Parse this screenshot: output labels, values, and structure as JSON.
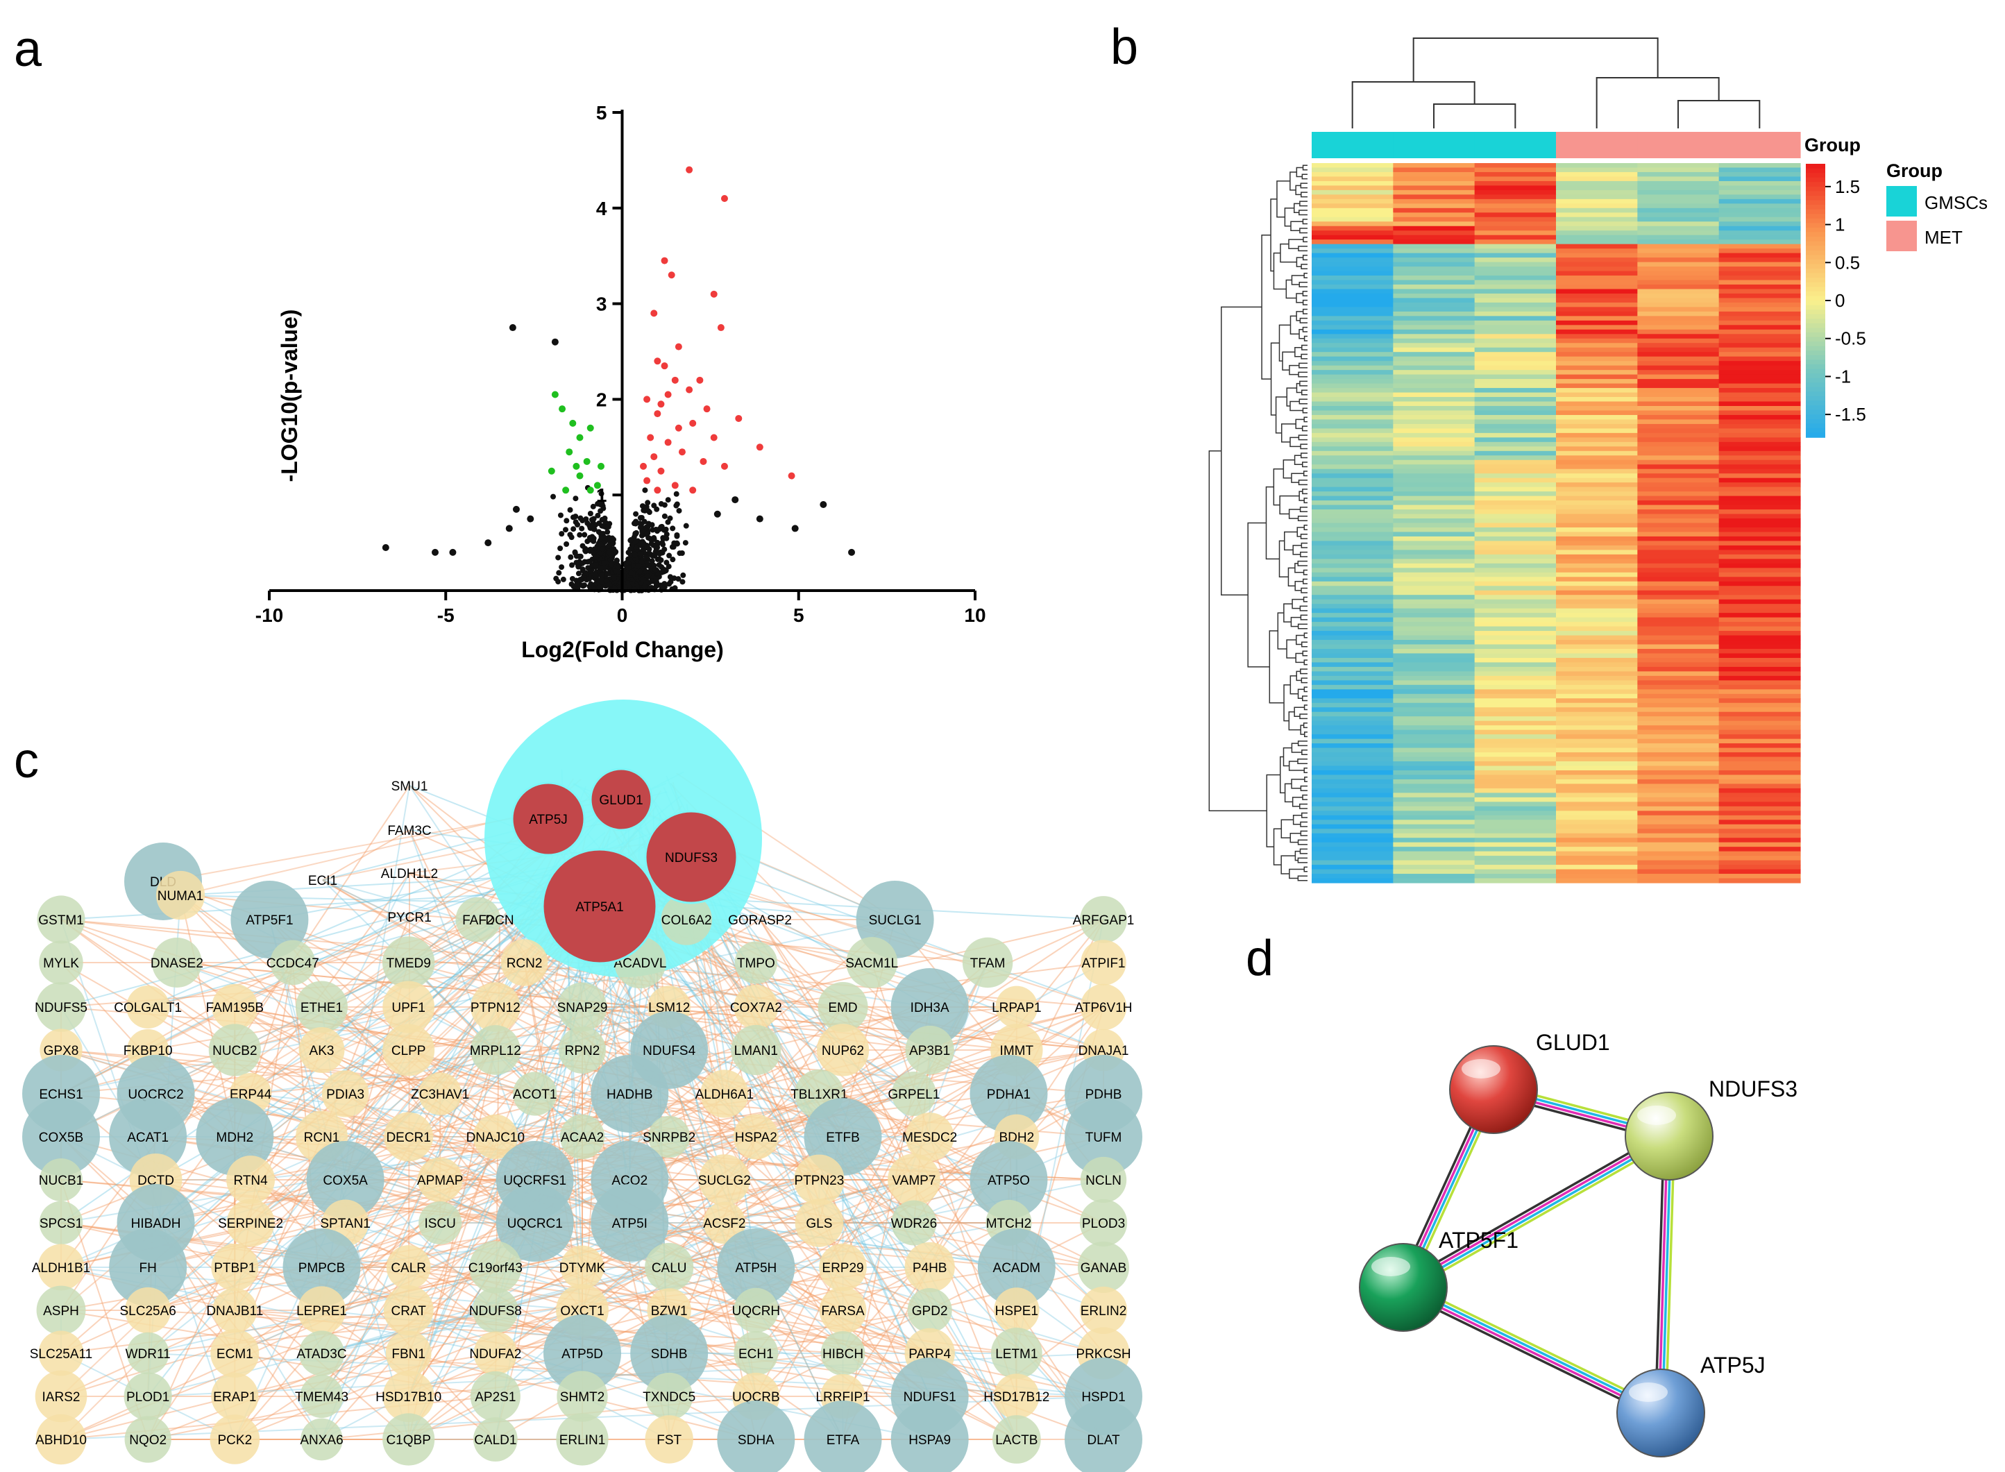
{
  "panels": {
    "a": {
      "letter": "a"
    },
    "b": {
      "letter": "b"
    },
    "c": {
      "letter": "c"
    },
    "d": {
      "letter": "d"
    }
  },
  "chart_data": [
    {
      "type": "scatter",
      "title": "",
      "xlabel": "Log2(Fold Change)",
      "ylabel": "-LOG10(p-value)",
      "xlim": [
        -10,
        10
      ],
      "ylim": [
        0,
        5
      ],
      "xticks": [
        -10,
        -5,
        0,
        5,
        10
      ],
      "yticks": [
        1,
        2,
        3,
        4,
        5
      ],
      "colors": {
        "up": "#ef3b3b",
        "down": "#1fbf1f",
        "ns": "#111111"
      },
      "series": [
        {
          "name": "up",
          "points": [
            [
              1.9,
              4.4
            ],
            [
              2.9,
              4.1
            ],
            [
              1.2,
              3.45
            ],
            [
              1.4,
              3.3
            ],
            [
              2.6,
              3.1
            ],
            [
              0.9,
              2.9
            ],
            [
              2.8,
              2.75
            ],
            [
              1.6,
              2.55
            ],
            [
              1.0,
              2.4
            ],
            [
              1.2,
              2.35
            ],
            [
              1.5,
              2.2
            ],
            [
              2.2,
              2.2
            ],
            [
              0.7,
              2.0
            ],
            [
              1.1,
              1.95
            ],
            [
              3.3,
              1.8
            ],
            [
              2.0,
              1.75
            ],
            [
              1.0,
              1.85
            ],
            [
              2.6,
              1.6
            ],
            [
              3.9,
              1.5
            ],
            [
              4.8,
              1.2
            ],
            [
              1.3,
              1.55
            ],
            [
              1.7,
              1.45
            ],
            [
              0.9,
              1.4
            ],
            [
              2.3,
              1.35
            ],
            [
              1.1,
              1.25
            ],
            [
              0.7,
              1.15
            ],
            [
              1.5,
              1.1
            ],
            [
              2.0,
              1.05
            ],
            [
              2.9,
              1.3
            ],
            [
              0.8,
              1.6
            ],
            [
              1.6,
              1.7
            ],
            [
              2.4,
              1.9
            ],
            [
              1.3,
              2.05
            ],
            [
              1.9,
              2.1
            ],
            [
              0.6,
              1.3
            ],
            [
              1.0,
              1.05
            ]
          ]
        },
        {
          "name": "down",
          "points": [
            [
              -1.9,
              2.05
            ],
            [
              -1.7,
              1.9
            ],
            [
              -1.4,
              1.75
            ],
            [
              -1.2,
              1.6
            ],
            [
              -0.9,
              1.7
            ],
            [
              -1.5,
              1.45
            ],
            [
              -1.0,
              1.35
            ],
            [
              -2.0,
              1.25
            ],
            [
              -1.2,
              1.2
            ],
            [
              -0.7,
              1.1
            ],
            [
              -0.9,
              1.05
            ],
            [
              -1.6,
              1.05
            ],
            [
              -0.6,
              1.3
            ],
            [
              -1.3,
              1.3
            ]
          ]
        },
        {
          "name": "ns",
          "points": [
            [
              -3.1,
              2.75
            ],
            [
              -1.9,
              2.6
            ],
            [
              -6.7,
              0.45
            ],
            [
              -5.3,
              0.4
            ],
            [
              -4.8,
              0.4
            ],
            [
              -3.8,
              0.5
            ],
            [
              -3.2,
              0.65
            ],
            [
              -2.6,
              0.75
            ],
            [
              -3.0,
              0.85
            ],
            [
              5.7,
              0.9
            ],
            [
              6.5,
              0.4
            ],
            [
              4.9,
              0.65
            ],
            [
              3.9,
              0.75
            ],
            [
              3.2,
              0.95
            ],
            [
              2.7,
              0.8
            ]
          ]
        }
      ],
      "density_cloud": {
        "x_half_width": 2.2,
        "y_max": 1.1,
        "n_points": 900
      }
    },
    {
      "type": "heatmap",
      "title": "",
      "columns": 6,
      "col_groups": [
        "GMSCs",
        "GMSCs",
        "GMSCs",
        "MET",
        "MET",
        "MET"
      ],
      "scale": {
        "min": -1.8,
        "max": 1.8,
        "ticks": [
          1.5,
          1,
          0.5,
          0,
          -0.5,
          -1,
          -1.5
        ],
        "tick_labels": [
          "1.5",
          "1",
          "0.5",
          "0",
          "-0.5",
          "-1",
          "-1.5"
        ]
      },
      "colorbar_title": "Group",
      "legend_title": "Group",
      "legend": [
        {
          "label": "GMSCs",
          "color": "#19d3d7"
        },
        {
          "label": "MET",
          "color": "#f7958f"
        }
      ],
      "row_blocks": [
        {
          "rows": 14,
          "values": [
            0.2,
            1.0,
            1.4,
            -0.1,
            -0.6,
            -0.9
          ]
        },
        {
          "rows": 4,
          "values": [
            1.5,
            1.6,
            1.2,
            -0.5,
            -0.9,
            -1.0
          ]
        },
        {
          "rows": 20,
          "values": [
            -1.5,
            -0.8,
            -0.7,
            1.4,
            0.8,
            1.3
          ]
        },
        {
          "rows": 12,
          "values": [
            -1.0,
            -0.5,
            -0.3,
            1.0,
            1.3,
            1.5
          ]
        },
        {
          "rows": 16,
          "values": [
            -0.6,
            -0.3,
            -0.6,
            0.5,
            1.0,
            1.5
          ]
        },
        {
          "rows": 30,
          "values": [
            -0.8,
            -0.5,
            -0.1,
            0.5,
            1.2,
            1.6
          ]
        },
        {
          "rows": 20,
          "values": [
            -1.2,
            -0.7,
            -0.2,
            0.2,
            1.0,
            1.5
          ]
        },
        {
          "rows": 24,
          "values": [
            -1.4,
            -0.9,
            0.1,
            0.3,
            0.9,
            1.2
          ]
        },
        {
          "rows": 20,
          "values": [
            -1.6,
            -0.6,
            -0.5,
            0.5,
            0.9,
            1.3
          ]
        }
      ]
    }
  ],
  "network": {
    "hub_nodes": [
      "ATP5J",
      "GLUD1",
      "NDUFS3",
      "ATP5A1"
    ],
    "top_labels": [
      "SMU1",
      "FAM3C",
      "ALDH1L2",
      "PYCR1",
      "DCN",
      "GORASP2",
      "ECI1"
    ],
    "node_rows": [
      [
        "DLD",
        "NUMA1"
      ],
      [
        "GSTM1",
        "ATP5F1",
        "FAF2",
        "COL6A2",
        "SUCLG1",
        "ARFGAP1"
      ],
      [
        "MYLK",
        "DNASE2",
        "CCDC47",
        "TMED9",
        "RCN2",
        "ACADVL",
        "TMPO",
        "SACM1L",
        "TFAM",
        "ATPIF1"
      ],
      [
        "NDUFS5",
        "COLGALT1",
        "FAM195B",
        "ETHE1",
        "UPF1",
        "PTPN12",
        "SNAP29",
        "LSM12",
        "COX7A2",
        "EMD",
        "IDH3A",
        "LRPAP1",
        "ATP6V1H"
      ],
      [
        "GPX8",
        "FKBP10",
        "NUCB2",
        "AK3",
        "CLPP",
        "MRPL12",
        "RPN2",
        "NDUFS4",
        "LMAN1",
        "NUP62",
        "AP3B1",
        "IMMT",
        "DNAJA1"
      ],
      [
        "ECHS1",
        "UQCRC2",
        "ERP44",
        "PDIA3",
        "ZC3HAV1",
        "ACOT1",
        "HADHB",
        "ALDH6A1",
        "TBL1XR1",
        "GRPEL1",
        "PDHA1",
        "PDHB"
      ],
      [
        "COX5B",
        "ACAT1",
        "MDH2",
        "RCN1",
        "DECR1",
        "DNAJC10",
        "ACAA2",
        "SNRPB2",
        "HSPA2",
        "ETFB",
        "MESDC2",
        "BDH2",
        "TUFM"
      ],
      [
        "NUCB1",
        "DCTD",
        "RTN4",
        "COX5A",
        "APMAP",
        "UQCRFS1",
        "ACO2",
        "SUCLG2",
        "PTPN23",
        "VAMP7",
        "ATP5O",
        "NCLN"
      ],
      [
        "SPCS1",
        "HIBADH",
        "SERPINE2",
        "SPTAN1",
        "ISCU",
        "UQCRC1",
        "ATP5I",
        "ACSF2",
        "GLS",
        "WDR26",
        "MTCH2",
        "PLOD3"
      ],
      [
        "ALDH1B1",
        "FH",
        "PTBP1",
        "PMPCB",
        "CALR",
        "C19orf43",
        "DTYMK",
        "CALU",
        "ATP5H",
        "ERP29",
        "P4HB",
        "ACADM",
        "GANAB"
      ],
      [
        "ASPH",
        "SLC25A6",
        "DNAJB11",
        "LEPRE1",
        "CRAT",
        "NDUFS8",
        "OXCT1",
        "BZW1",
        "UQCRH",
        "FARSA",
        "GPD2",
        "HSPE1",
        "ERLIN2"
      ],
      [
        "SLC25A11",
        "WDR11",
        "ECM1",
        "ATAD3C",
        "FBN1",
        "NDUFA2",
        "ATP5D",
        "SDHB",
        "ECH1",
        "HIBCH",
        "PARP4",
        "LETM1",
        "PRKCSH"
      ],
      [
        "IARS2",
        "PLOD1",
        "ERAP1",
        "TMEM43",
        "HSD17B10",
        "AP2S1",
        "SHMT2",
        "TXNDC5",
        "UQCRB",
        "LRRFIP1",
        "NDUFS1",
        "HSD17B12",
        "HSPD1"
      ],
      [
        "ABHD10",
        "NQO2",
        "PCK2",
        "ANXA6",
        "C1QBP",
        "CALD1",
        "ERLIN1",
        "FST",
        "SDHA",
        "ETFA",
        "HSPA9",
        "LACTB",
        "DLAT"
      ]
    ]
  },
  "string_network": {
    "nodes": [
      {
        "name": "GLUD1",
        "color": "#e0463f"
      },
      {
        "name": "NDUFS3",
        "color": "#c9dd7e"
      },
      {
        "name": "ATP5F1",
        "color": "#19a15a"
      },
      {
        "name": "ATP5J",
        "color": "#6f9fd6"
      }
    ],
    "edges": [
      [
        "GLUD1",
        "NDUFS3"
      ],
      [
        "GLUD1",
        "ATP5F1"
      ],
      [
        "NDUFS3",
        "ATP5F1"
      ],
      [
        "NDUFS3",
        "ATP5J"
      ],
      [
        "ATP5F1",
        "ATP5J"
      ]
    ]
  }
}
